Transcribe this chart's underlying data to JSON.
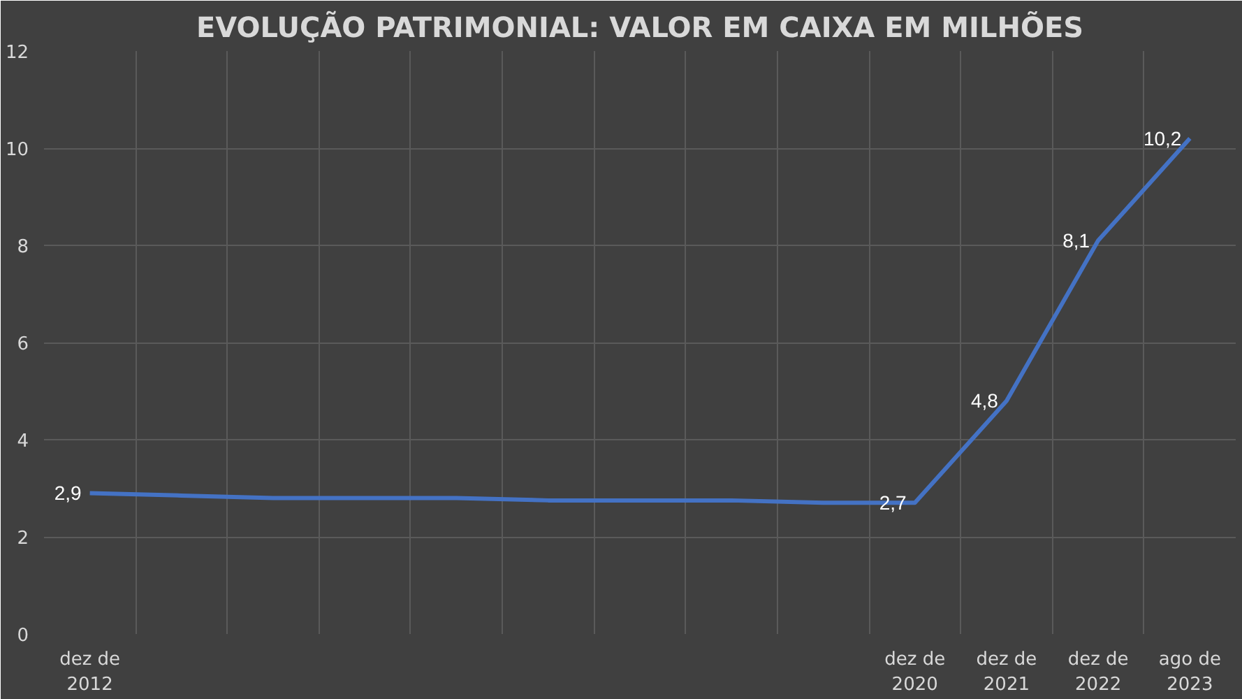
{
  "chart_data": {
    "type": "line",
    "title": "EVOLUÇÃO PATRIMONIAL: VALOR EM CAIXA EM MILHÕES",
    "categories": [
      "dez de\n2012",
      null,
      null,
      null,
      null,
      null,
      null,
      null,
      null,
      "dez de\n2020",
      "dez de\n2021",
      "dez de\n2022",
      "ago de\n2023"
    ],
    "series": [
      {
        "color": "#4472c4",
        "values": [
          2.9,
          2.85,
          2.8,
          2.8,
          2.8,
          2.75,
          2.75,
          2.75,
          2.7,
          2.7,
          4.8,
          8.1,
          10.2
        ],
        "value_labels": [
          "2,9",
          null,
          null,
          null,
          null,
          null,
          null,
          null,
          null,
          "2,7",
          "4,8",
          "8,1",
          "10,2"
        ]
      }
    ],
    "ylim": [
      0,
      12
    ],
    "yticks": [
      0,
      2,
      4,
      6,
      8,
      10,
      12
    ],
    "grid": true,
    "marker": "none",
    "line_style": "solid"
  }
}
